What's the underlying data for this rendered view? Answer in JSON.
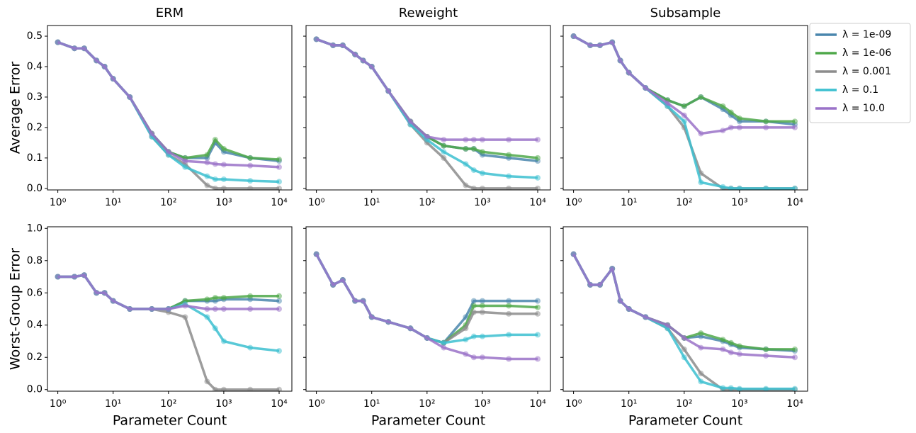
{
  "legend": [
    {
      "name": "λ = 1e-09",
      "color": "#4a86ad"
    },
    {
      "name": "λ = 1e-06",
      "color": "#4fa84a"
    },
    {
      "name": "λ = 0.001",
      "color": "#8c8c8c"
    },
    {
      "name": "λ = 0.1",
      "color": "#3cc0d0"
    },
    {
      "name": "λ = 10.0",
      "color": "#9a72c8"
    }
  ],
  "legend_position": "outside right",
  "chart_data": [
    {
      "type": "line",
      "title": "ERM",
      "ylabel": "Average Error",
      "log_x": true,
      "show_ytick_labels": true,
      "x": [
        1,
        2,
        3,
        5,
        7,
        10,
        20,
        50,
        100,
        200,
        500,
        700,
        1000,
        3000,
        10000
      ],
      "xlim": [
        0.65,
        17000
      ],
      "xticks": [
        {
          "value": 1,
          "label": "10⁰"
        },
        {
          "value": 10,
          "label": "10¹"
        },
        {
          "value": 100,
          "label": "10²"
        },
        {
          "value": 1000,
          "label": "10³"
        },
        {
          "value": 10000,
          "label": "10⁴"
        }
      ],
      "ylim": [
        -0.005,
        0.535
      ],
      "yticks": [
        {
          "value": 0,
          "label": "0.0"
        },
        0.1,
        0.2,
        0.3,
        0.4,
        0.5
      ],
      "series": [
        {
          "values": [
            0.48,
            0.46,
            0.46,
            0.42,
            0.4,
            0.36,
            0.3,
            0.18,
            0.12,
            0.1,
            0.1,
            0.15,
            0.12,
            0.1,
            0.09
          ]
        },
        {
          "values": [
            0.48,
            0.46,
            0.46,
            0.42,
            0.4,
            0.36,
            0.3,
            0.18,
            0.12,
            0.1,
            0.11,
            0.16,
            0.13,
            0.1,
            0.095
          ]
        },
        {
          "values": [
            0.48,
            0.46,
            0.46,
            0.42,
            0.4,
            0.36,
            0.3,
            0.17,
            0.11,
            0.08,
            0.01,
            0,
            0,
            0,
            0
          ]
        },
        {
          "values": [
            0.48,
            0.46,
            0.46,
            0.42,
            0.4,
            0.36,
            0.3,
            0.17,
            0.11,
            0.07,
            0.04,
            0.03,
            0.03,
            0.025,
            0.022
          ]
        },
        {
          "values": [
            0.48,
            0.46,
            0.46,
            0.42,
            0.4,
            0.36,
            0.3,
            0.18,
            0.12,
            0.09,
            0.085,
            0.08,
            0.078,
            0.075,
            0.07
          ]
        }
      ]
    },
    {
      "type": "line",
      "title": "Reweight",
      "log_x": true,
      "show_ytick_labels": false,
      "x": [
        1,
        2,
        3,
        5,
        7,
        10,
        20,
        50,
        100,
        200,
        500,
        700,
        1000,
        3000,
        10000
      ],
      "xlim": [
        0.65,
        17000
      ],
      "xticks": [
        {
          "value": 1,
          "label": "10⁰"
        },
        {
          "value": 10,
          "label": "10¹"
        },
        {
          "value": 100,
          "label": "10²"
        },
        {
          "value": 1000,
          "label": "10³"
        },
        {
          "value": 10000,
          "label": "10⁴"
        }
      ],
      "ylim": [
        -0.005,
        0.535
      ],
      "yticks": [
        0,
        0.1,
        0.2,
        0.3,
        0.4,
        0.5
      ],
      "series": [
        {
          "values": [
            0.49,
            0.47,
            0.47,
            0.44,
            0.42,
            0.4,
            0.32,
            0.22,
            0.17,
            0.14,
            0.13,
            0.13,
            0.11,
            0.1,
            0.09
          ]
        },
        {
          "values": [
            0.49,
            0.47,
            0.47,
            0.44,
            0.42,
            0.4,
            0.32,
            0.22,
            0.17,
            0.14,
            0.13,
            0.13,
            0.12,
            0.11,
            0.1
          ]
        },
        {
          "values": [
            0.49,
            0.47,
            0.47,
            0.44,
            0.42,
            0.4,
            0.32,
            0.21,
            0.15,
            0.1,
            0.01,
            0,
            0,
            0,
            0
          ]
        },
        {
          "values": [
            0.49,
            0.47,
            0.47,
            0.44,
            0.42,
            0.4,
            0.32,
            0.21,
            0.16,
            0.12,
            0.08,
            0.06,
            0.05,
            0.04,
            0.035
          ]
        },
        {
          "values": [
            0.49,
            0.47,
            0.47,
            0.44,
            0.42,
            0.4,
            0.32,
            0.22,
            0.17,
            0.16,
            0.16,
            0.16,
            0.16,
            0.16,
            0.16
          ]
        }
      ]
    },
    {
      "type": "line",
      "title": "Subsample",
      "log_x": true,
      "show_ytick_labels": false,
      "x": [
        1,
        2,
        3,
        5,
        7,
        10,
        20,
        50,
        100,
        200,
        500,
        700,
        1000,
        3000,
        10000
      ],
      "xlim": [
        0.65,
        17000
      ],
      "xticks": [
        {
          "value": 1,
          "label": "10⁰"
        },
        {
          "value": 10,
          "label": "10¹"
        },
        {
          "value": 100,
          "label": "10²"
        },
        {
          "value": 1000,
          "label": "10³"
        },
        {
          "value": 10000,
          "label": "10⁴"
        }
      ],
      "ylim": [
        -0.005,
        0.535
      ],
      "yticks": [
        0,
        0.1,
        0.2,
        0.3,
        0.4,
        0.5
      ],
      "series": [
        {
          "values": [
            0.5,
            0.47,
            0.47,
            0.48,
            0.42,
            0.38,
            0.33,
            0.29,
            0.27,
            0.3,
            0.26,
            0.24,
            0.22,
            0.22,
            0.21
          ]
        },
        {
          "values": [
            0.5,
            0.47,
            0.47,
            0.48,
            0.42,
            0.38,
            0.33,
            0.29,
            0.27,
            0.3,
            0.27,
            0.25,
            0.23,
            0.22,
            0.22
          ]
        },
        {
          "values": [
            0.5,
            0.47,
            0.47,
            0.48,
            0.42,
            0.38,
            0.33,
            0.27,
            0.2,
            0.05,
            0,
            0,
            0,
            0,
            0
          ]
        },
        {
          "values": [
            0.5,
            0.47,
            0.47,
            0.48,
            0.42,
            0.38,
            0.33,
            0.27,
            0.22,
            0.02,
            0.005,
            0,
            0,
            0,
            0
          ]
        },
        {
          "values": [
            0.5,
            0.47,
            0.47,
            0.48,
            0.42,
            0.38,
            0.33,
            0.28,
            0.24,
            0.18,
            0.19,
            0.2,
            0.2,
            0.2,
            0.2
          ]
        }
      ]
    },
    {
      "type": "line",
      "ylabel": "Worst-Group Error",
      "xlabel": "Parameter Count",
      "log_x": true,
      "show_ytick_labels": true,
      "x": [
        1,
        2,
        3,
        5,
        7,
        10,
        20,
        50,
        100,
        200,
        500,
        700,
        1000,
        3000,
        10000
      ],
      "xlim": [
        0.65,
        17000
      ],
      "xticks": [
        {
          "value": 1,
          "label": "10⁰"
        },
        {
          "value": 10,
          "label": "10¹"
        },
        {
          "value": 100,
          "label": "10²"
        },
        {
          "value": 1000,
          "label": "10³"
        },
        {
          "value": 10000,
          "label": "10⁴"
        }
      ],
      "ylim": [
        -0.01,
        1.01
      ],
      "yticks": [
        {
          "value": 0,
          "label": "0.0"
        },
        0.2,
        0.4,
        0.6,
        0.8,
        {
          "value": 1,
          "label": "1.0"
        }
      ],
      "series": [
        {
          "values": [
            0.7,
            0.7,
            0.71,
            0.6,
            0.6,
            0.55,
            0.5,
            0.5,
            0.5,
            0.55,
            0.55,
            0.55,
            0.56,
            0.56,
            0.55
          ]
        },
        {
          "values": [
            0.7,
            0.7,
            0.71,
            0.6,
            0.6,
            0.55,
            0.5,
            0.5,
            0.5,
            0.55,
            0.56,
            0.57,
            0.57,
            0.58,
            0.58
          ]
        },
        {
          "values": [
            0.7,
            0.7,
            0.71,
            0.6,
            0.6,
            0.55,
            0.5,
            0.5,
            0.48,
            0.45,
            0.05,
            0,
            0,
            0,
            0
          ]
        },
        {
          "values": [
            0.7,
            0.7,
            0.71,
            0.6,
            0.6,
            0.55,
            0.5,
            0.5,
            0.5,
            0.53,
            0.45,
            0.38,
            0.3,
            0.26,
            0.24
          ]
        },
        {
          "values": [
            0.7,
            0.7,
            0.71,
            0.6,
            0.6,
            0.55,
            0.5,
            0.5,
            0.5,
            0.52,
            0.5,
            0.5,
            0.5,
            0.5,
            0.5
          ]
        }
      ]
    },
    {
      "type": "line",
      "xlabel": "Parameter Count",
      "log_x": true,
      "show_ytick_labels": false,
      "x": [
        1,
        2,
        3,
        5,
        7,
        10,
        20,
        50,
        100,
        200,
        500,
        700,
        1000,
        3000,
        10000
      ],
      "xlim": [
        0.65,
        17000
      ],
      "xticks": [
        {
          "value": 1,
          "label": "10⁰"
        },
        {
          "value": 10,
          "label": "10¹"
        },
        {
          "value": 100,
          "label": "10²"
        },
        {
          "value": 1000,
          "label": "10³"
        },
        {
          "value": 10000,
          "label": "10⁴"
        }
      ],
      "ylim": [
        -0.01,
        1.01
      ],
      "yticks": [
        0,
        0.2,
        0.4,
        0.6,
        0.8,
        1
      ],
      "series": [
        {
          "values": [
            0.84,
            0.65,
            0.68,
            0.55,
            0.55,
            0.45,
            0.42,
            0.38,
            0.32,
            0.29,
            0.45,
            0.55,
            0.55,
            0.55,
            0.55
          ]
        },
        {
          "values": [
            0.84,
            0.65,
            0.68,
            0.55,
            0.55,
            0.45,
            0.42,
            0.38,
            0.32,
            0.29,
            0.4,
            0.52,
            0.52,
            0.52,
            0.51
          ]
        },
        {
          "values": [
            0.84,
            0.65,
            0.68,
            0.55,
            0.55,
            0.45,
            0.42,
            0.38,
            0.32,
            0.29,
            0.38,
            0.48,
            0.48,
            0.47,
            0.47
          ]
        },
        {
          "values": [
            0.84,
            0.65,
            0.68,
            0.55,
            0.55,
            0.45,
            0.42,
            0.38,
            0.32,
            0.29,
            0.31,
            0.33,
            0.33,
            0.34,
            0.34
          ]
        },
        {
          "values": [
            0.84,
            0.65,
            0.68,
            0.55,
            0.55,
            0.45,
            0.42,
            0.38,
            0.32,
            0.26,
            0.22,
            0.2,
            0.2,
            0.19,
            0.19
          ]
        }
      ]
    },
    {
      "type": "line",
      "xlabel": "Parameter Count",
      "log_x": true,
      "show_ytick_labels": false,
      "x": [
        1,
        2,
        3,
        5,
        7,
        10,
        20,
        50,
        100,
        200,
        500,
        700,
        1000,
        3000,
        10000
      ],
      "xlim": [
        0.65,
        17000
      ],
      "xticks": [
        {
          "value": 1,
          "label": "10⁰"
        },
        {
          "value": 10,
          "label": "10¹"
        },
        {
          "value": 100,
          "label": "10²"
        },
        {
          "value": 1000,
          "label": "10³"
        },
        {
          "value": 10000,
          "label": "10⁴"
        }
      ],
      "ylim": [
        -0.01,
        1.01
      ],
      "yticks": [
        0,
        0.2,
        0.4,
        0.6,
        0.8,
        1
      ],
      "series": [
        {
          "values": [
            0.84,
            0.65,
            0.65,
            0.75,
            0.55,
            0.5,
            0.45,
            0.4,
            0.32,
            0.33,
            0.3,
            0.28,
            0.26,
            0.25,
            0.24
          ]
        },
        {
          "values": [
            0.84,
            0.65,
            0.65,
            0.75,
            0.55,
            0.5,
            0.45,
            0.4,
            0.32,
            0.35,
            0.31,
            0.29,
            0.27,
            0.25,
            0.25
          ]
        },
        {
          "values": [
            0.84,
            0.65,
            0.65,
            0.75,
            0.55,
            0.5,
            0.45,
            0.38,
            0.25,
            0.1,
            0,
            0,
            0,
            0,
            0
          ]
        },
        {
          "values": [
            0.84,
            0.65,
            0.65,
            0.75,
            0.55,
            0.5,
            0.45,
            0.38,
            0.2,
            0.05,
            0.01,
            0.01,
            0.005,
            0.005,
            0.005
          ]
        },
        {
          "values": [
            0.84,
            0.65,
            0.65,
            0.75,
            0.55,
            0.5,
            0.45,
            0.4,
            0.32,
            0.26,
            0.25,
            0.23,
            0.22,
            0.21,
            0.2
          ]
        }
      ]
    }
  ]
}
